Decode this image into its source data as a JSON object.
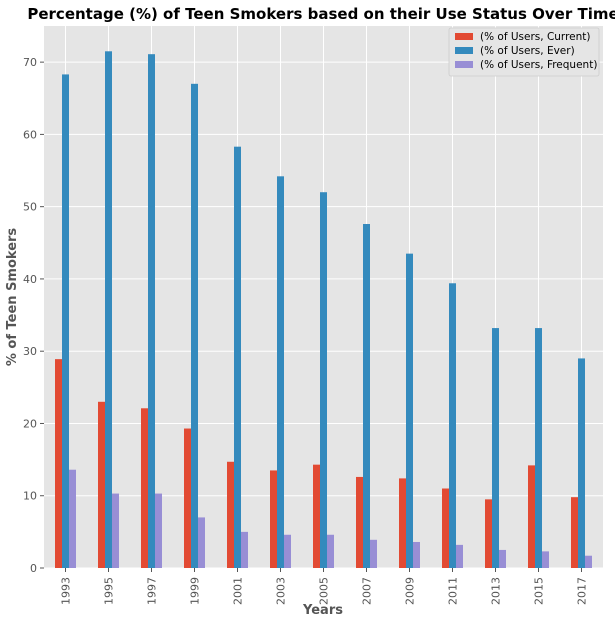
{
  "chart_data": {
    "type": "bar",
    "title": "Percentage (%) of Teen Smokers based on their Use Status Over Time",
    "xlabel": "Years",
    "ylabel": "% of Teen Smokers",
    "categories": [
      "1993",
      "1995",
      "1997",
      "1999",
      "2001",
      "2003",
      "2005",
      "2007",
      "2009",
      "2011",
      "2013",
      "2015",
      "2017"
    ],
    "series": [
      {
        "name": "(% of Users, Current)",
        "color": "#E24A33",
        "values": [
          28.9,
          23.0,
          22.1,
          19.3,
          14.7,
          13.5,
          14.3,
          12.6,
          12.4,
          11.0,
          9.5,
          14.2,
          9.8
        ]
      },
      {
        "name": "(% of Users, Ever)",
        "color": "#348ABD",
        "values": [
          68.3,
          71.5,
          71.1,
          67.0,
          58.3,
          54.2,
          52.0,
          47.6,
          43.5,
          39.4,
          33.2,
          33.2,
          29.0
        ]
      },
      {
        "name": "(% of Users, Frequent)",
        "color": "#988ED5",
        "values": [
          13.6,
          10.3,
          10.3,
          7.0,
          5.0,
          4.6,
          4.6,
          3.9,
          3.6,
          3.2,
          2.5,
          2.3,
          1.7
        ]
      }
    ],
    "ylim": [
      0,
      75
    ],
    "yticks": [
      "0",
      "10",
      "20",
      "30",
      "40",
      "50",
      "60",
      "70"
    ],
    "grid": true,
    "legend_position": "top-right",
    "background_color": "#E5E5E5",
    "grid_color": "#FFFFFF"
  }
}
